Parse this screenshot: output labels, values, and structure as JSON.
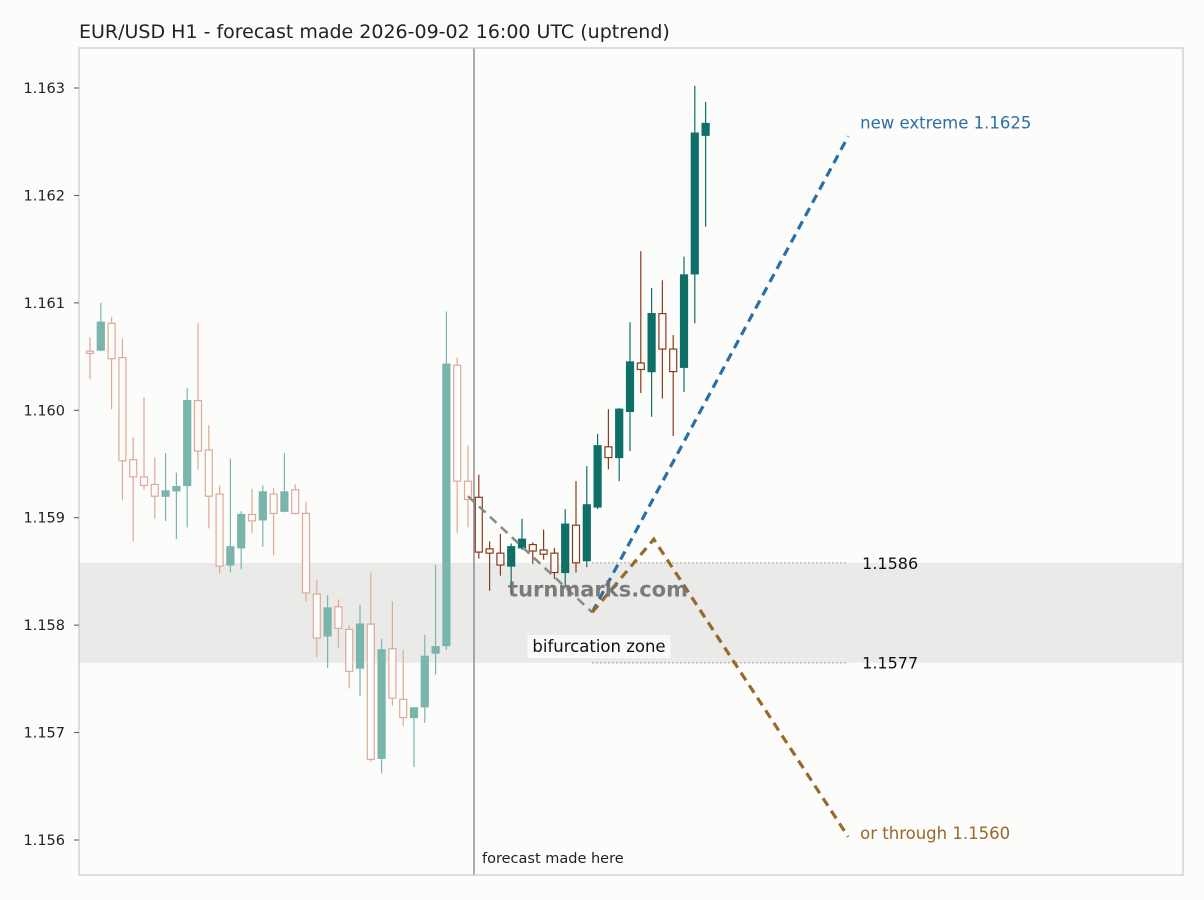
{
  "chart_data": {
    "type": "candlestick",
    "title": "EUR/USD H1 - forecast made 2026-09-02 16:00 UTC (uptrend)",
    "xlabel": "",
    "ylabel": "",
    "ylim": [
      1.15567,
      1.16338
    ],
    "y_ticks": [
      1.156,
      1.157,
      1.158,
      1.159,
      1.16,
      1.161,
      1.162,
      1.163
    ],
    "y_tick_labels": [
      "1.156",
      "1.157",
      "1.158",
      "1.159",
      "1.160",
      "1.161",
      "1.162",
      "1.163"
    ],
    "grid": false,
    "colors": {
      "up": "#0f7068",
      "down": "#8b3a1c",
      "history_up": "#7ab5ad",
      "history_down": "#dfa998",
      "zone": "#eaebe9",
      "divider": "#8f8f8f",
      "path_pre": "#8a8a8a",
      "path_up": "#2a70a8",
      "path_down": "#99682a",
      "frame": "#c9c9c9"
    },
    "history_candles": [
      {
        "o": 1.16055,
        "h": 1.16068,
        "l": 1.16029,
        "c": 1.16053
      },
      {
        "o": 1.16056,
        "h": 1.161,
        "l": 1.16055,
        "c": 1.16082
      },
      {
        "o": 1.16081,
        "h": 1.16087,
        "l": 1.16001,
        "c": 1.16048
      },
      {
        "o": 1.16049,
        "h": 1.16067,
        "l": 1.15916,
        "c": 1.15953
      },
      {
        "o": 1.15954,
        "h": 1.15975,
        "l": 1.15878,
        "c": 1.15938
      },
      {
        "o": 1.15938,
        "h": 1.16012,
        "l": 1.15926,
        "c": 1.1593
      },
      {
        "o": 1.15931,
        "h": 1.15956,
        "l": 1.15899,
        "c": 1.1592
      },
      {
        "o": 1.1592,
        "h": 1.1596,
        "l": 1.15897,
        "c": 1.15925
      },
      {
        "o": 1.15925,
        "h": 1.15942,
        "l": 1.1588,
        "c": 1.15929
      },
      {
        "o": 1.1593,
        "h": 1.16021,
        "l": 1.15891,
        "c": 1.16009
      },
      {
        "o": 1.16009,
        "h": 1.16081,
        "l": 1.15945,
        "c": 1.15962
      },
      {
        "o": 1.15963,
        "h": 1.15986,
        "l": 1.1589,
        "c": 1.1592
      },
      {
        "o": 1.15922,
        "h": 1.1593,
        "l": 1.15848,
        "c": 1.15855
      },
      {
        "o": 1.15856,
        "h": 1.15955,
        "l": 1.15849,
        "c": 1.15873
      },
      {
        "o": 1.15872,
        "h": 1.15906,
        "l": 1.15852,
        "c": 1.15903
      },
      {
        "o": 1.15903,
        "h": 1.15927,
        "l": 1.15886,
        "c": 1.15897
      },
      {
        "o": 1.15898,
        "h": 1.1593,
        "l": 1.15873,
        "c": 1.15924
      },
      {
        "o": 1.15922,
        "h": 1.15928,
        "l": 1.15865,
        "c": 1.15904
      },
      {
        "o": 1.15906,
        "h": 1.1596,
        "l": 1.15905,
        "c": 1.15924
      },
      {
        "o": 1.15926,
        "h": 1.15931,
        "l": 1.15903,
        "c": 1.15904
      },
      {
        "o": 1.15904,
        "h": 1.15915,
        "l": 1.15822,
        "c": 1.1583
      },
      {
        "o": 1.15829,
        "h": 1.15842,
        "l": 1.1577,
        "c": 1.15788
      },
      {
        "o": 1.1579,
        "h": 1.15828,
        "l": 1.1576,
        "c": 1.15816
      },
      {
        "o": 1.15817,
        "h": 1.15824,
        "l": 1.15779,
        "c": 1.15797
      },
      {
        "o": 1.15796,
        "h": 1.158,
        "l": 1.15741,
        "c": 1.15757
      },
      {
        "o": 1.1576,
        "h": 1.15819,
        "l": 1.15734,
        "c": 1.15801
      },
      {
        "o": 1.15801,
        "h": 1.15849,
        "l": 1.15673,
        "c": 1.15675
      },
      {
        "o": 1.15676,
        "h": 1.15787,
        "l": 1.15662,
        "c": 1.15777
      },
      {
        "o": 1.15778,
        "h": 1.15822,
        "l": 1.15725,
        "c": 1.15732
      },
      {
        "o": 1.15731,
        "h": 1.15777,
        "l": 1.15706,
        "c": 1.15714
      },
      {
        "o": 1.15714,
        "h": 1.15723,
        "l": 1.15668,
        "c": 1.15723
      },
      {
        "o": 1.15724,
        "h": 1.15791,
        "l": 1.15709,
        "c": 1.15771
      },
      {
        "o": 1.15774,
        "h": 1.15856,
        "l": 1.15754,
        "c": 1.1578
      },
      {
        "o": 1.15781,
        "h": 1.16092,
        "l": 1.15777,
        "c": 1.16043
      },
      {
        "o": 1.16042,
        "h": 1.16049,
        "l": 1.15886,
        "c": 1.15934
      },
      {
        "o": 1.15934,
        "h": 1.15967,
        "l": 1.15891,
        "c": 1.15917
      }
    ],
    "forecast_candles": [
      {
        "o": 1.15919,
        "h": 1.1594,
        "l": 1.15862,
        "c": 1.15868
      },
      {
        "o": 1.15871,
        "h": 1.15878,
        "l": 1.15832,
        "c": 1.15867
      },
      {
        "o": 1.15867,
        "h": 1.15885,
        "l": 1.15846,
        "c": 1.15856
      },
      {
        "o": 1.15855,
        "h": 1.15876,
        "l": 1.15828,
        "c": 1.15873
      },
      {
        "o": 1.15872,
        "h": 1.15899,
        "l": 1.1587,
        "c": 1.1588
      },
      {
        "o": 1.15875,
        "h": 1.15877,
        "l": 1.15857,
        "c": 1.15869
      },
      {
        "o": 1.1587,
        "h": 1.15889,
        "l": 1.15861,
        "c": 1.15866
      },
      {
        "o": 1.15867,
        "h": 1.15872,
        "l": 1.15843,
        "c": 1.15849
      },
      {
        "o": 1.15849,
        "h": 1.15908,
        "l": 1.15836,
        "c": 1.15894
      },
      {
        "o": 1.15893,
        "h": 1.15934,
        "l": 1.15849,
        "c": 1.15858
      },
      {
        "o": 1.1586,
        "h": 1.15948,
        "l": 1.15854,
        "c": 1.15912
      },
      {
        "o": 1.1591,
        "h": 1.15978,
        "l": 1.15908,
        "c": 1.15967
      },
      {
        "o": 1.15966,
        "h": 1.16001,
        "l": 1.15945,
        "c": 1.15956
      },
      {
        "o": 1.15956,
        "h": 1.16002,
        "l": 1.15934,
        "c": 1.16001
      },
      {
        "o": 1.15999,
        "h": 1.16082,
        "l": 1.15962,
        "c": 1.16045
      },
      {
        "o": 1.16044,
        "h": 1.16148,
        "l": 1.16016,
        "c": 1.16038
      },
      {
        "o": 1.16036,
        "h": 1.16114,
        "l": 1.15994,
        "c": 1.1609
      },
      {
        "o": 1.1609,
        "h": 1.16121,
        "l": 1.16011,
        "c": 1.16057
      },
      {
        "o": 1.16057,
        "h": 1.1607,
        "l": 1.15976,
        "c": 1.16036
      },
      {
        "o": 1.1604,
        "h": 1.16143,
        "l": 1.16017,
        "c": 1.16126
      },
      {
        "o": 1.16127,
        "h": 1.16302,
        "l": 1.16081,
        "c": 1.16258
      },
      {
        "o": 1.16256,
        "h": 1.16287,
        "l": 1.16171,
        "c": 1.16267
      }
    ],
    "bifurcation_zone": {
      "low": 1.15765,
      "high": 1.15858
    },
    "levels": [
      {
        "value": 1.15858,
        "label": "1.1586"
      },
      {
        "value": 1.15765,
        "label": "1.1577"
      }
    ],
    "scenario_paths": [
      {
        "id": "pre",
        "from_candle": 35,
        "points": [
          {
            "bars": 0,
            "price": 1.1592
          },
          {
            "bars": 11.5,
            "price": 1.15812
          }
        ]
      },
      {
        "id": "up",
        "label": "new extreme 1.1625",
        "points": [
          {
            "bars": 11.5,
            "price": 1.15812
          },
          {
            "bars": 35.2,
            "price": 1.16255
          }
        ]
      },
      {
        "id": "down",
        "label": "or through 1.1560",
        "points": [
          {
            "bars": 11.5,
            "price": 1.15812
          },
          {
            "bars": 17.2,
            "price": 1.1588
          },
          {
            "bars": 35.2,
            "price": 1.15603
          }
        ]
      }
    ],
    "annotations": {
      "forecast_marker": "forecast made here",
      "zone_label": "bifurcation zone",
      "watermark": "turnmarks.com"
    }
  }
}
